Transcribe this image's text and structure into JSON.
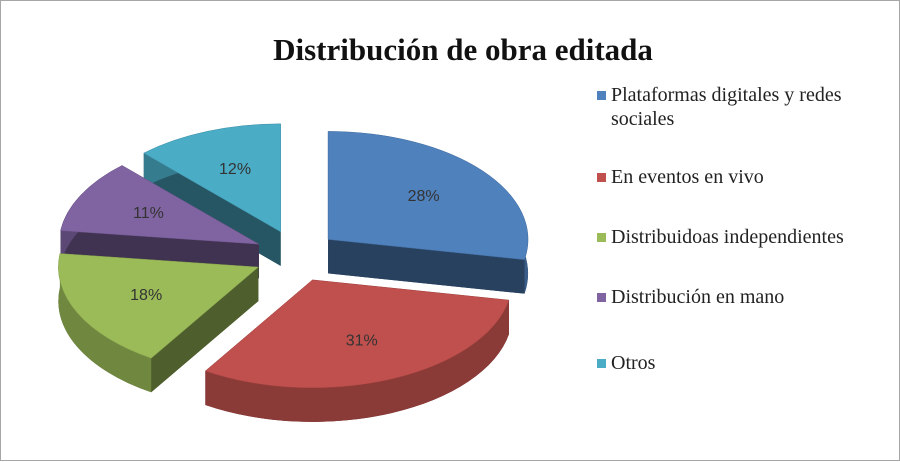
{
  "chart_data": {
    "type": "pie",
    "title": "Distribución de obra editada",
    "categories": [
      "Plataformas digitales y redes sociales",
      "En eventos en vivo",
      "Distribuidoas independientes",
      "Distribución en mano",
      "Otros"
    ],
    "values": [
      28,
      31,
      18,
      11,
      12
    ],
    "value_labels": [
      "28%",
      "31%",
      "18%",
      "11%",
      "12%"
    ],
    "colors": [
      "#4f81bd",
      "#c0504d",
      "#9bbb59",
      "#8064a2",
      "#4bacc6"
    ],
    "legend": "right"
  }
}
